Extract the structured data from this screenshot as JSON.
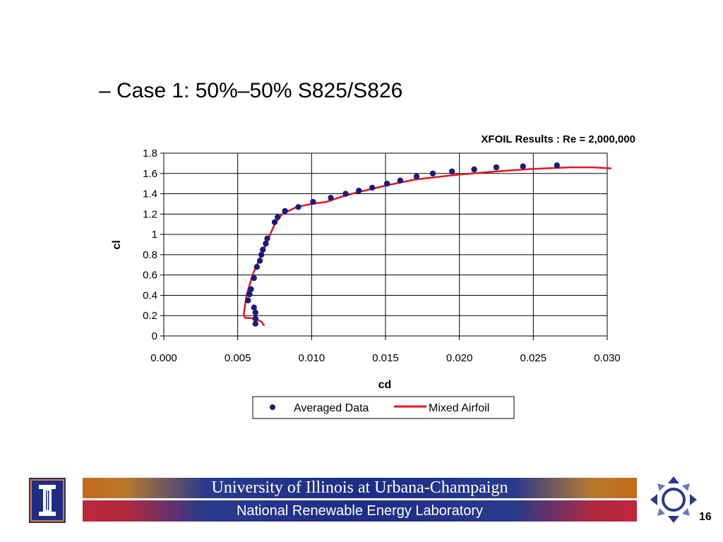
{
  "slide": {
    "bullet_text": "– Case 1: 50%–50% S825/S826",
    "page_number": "16"
  },
  "footer": {
    "line1": "University of Illinois at Urbana-Champaign",
    "line2": "National Renewable Energy Laboratory"
  },
  "chart_data": {
    "type": "scatter",
    "title": "XFOIL Results : Re = 2,000,000",
    "xlabel": "cd",
    "ylabel": "cl",
    "xlim": [
      0.0,
      0.03
    ],
    "ylim": [
      0,
      1.8
    ],
    "x_ticks": [
      "0.000",
      "0.005",
      "0.010",
      "0.015",
      "0.020",
      "0.025",
      "0.030"
    ],
    "y_ticks": [
      "0",
      "0.2",
      "0.4",
      "0.6",
      "0.8",
      "1",
      "1.2",
      "1.4",
      "1.6",
      "1.8"
    ],
    "grid": "horizontal and vertical major gridlines",
    "legend_position": "bottom",
    "series": [
      {
        "name": "Averaged Data",
        "style": "markers",
        "color": "#1a1a80",
        "points": [
          [
            0.0062,
            0.12
          ],
          [
            0.0062,
            0.17
          ],
          [
            0.0062,
            0.23
          ],
          [
            0.0061,
            0.28
          ],
          [
            0.0057,
            0.35
          ],
          [
            0.0058,
            0.41
          ],
          [
            0.0059,
            0.46
          ],
          [
            0.0061,
            0.57
          ],
          [
            0.0063,
            0.68
          ],
          [
            0.0065,
            0.74
          ],
          [
            0.0066,
            0.8
          ],
          [
            0.0067,
            0.85
          ],
          [
            0.0069,
            0.91
          ],
          [
            0.007,
            0.96
          ],
          [
            0.0075,
            1.12
          ],
          [
            0.0077,
            1.17
          ],
          [
            0.0082,
            1.23
          ],
          [
            0.0091,
            1.27
          ],
          [
            0.0101,
            1.32
          ],
          [
            0.0113,
            1.36
          ],
          [
            0.0123,
            1.4
          ],
          [
            0.0132,
            1.43
          ],
          [
            0.0141,
            1.46
          ],
          [
            0.0151,
            1.5
          ],
          [
            0.016,
            1.53
          ],
          [
            0.0171,
            1.57
          ],
          [
            0.0182,
            1.6
          ],
          [
            0.0195,
            1.62
          ],
          [
            0.021,
            1.64
          ],
          [
            0.0225,
            1.66
          ],
          [
            0.0243,
            1.67
          ],
          [
            0.0266,
            1.68
          ]
        ]
      },
      {
        "name": "Mixed Airfoil",
        "style": "line",
        "color": "#e8141c",
        "points": [
          [
            0.0068,
            0.1
          ],
          [
            0.0066,
            0.14
          ],
          [
            0.0062,
            0.17
          ],
          [
            0.0055,
            0.18
          ],
          [
            0.0054,
            0.2
          ],
          [
            0.0055,
            0.3
          ],
          [
            0.0056,
            0.4
          ],
          [
            0.0058,
            0.5
          ],
          [
            0.006,
            0.6
          ],
          [
            0.0063,
            0.7
          ],
          [
            0.0066,
            0.8
          ],
          [
            0.0069,
            0.9
          ],
          [
            0.0072,
            1.0
          ],
          [
            0.0075,
            1.1
          ],
          [
            0.008,
            1.2
          ],
          [
            0.009,
            1.27
          ],
          [
            0.01,
            1.3
          ],
          [
            0.011,
            1.32
          ],
          [
            0.012,
            1.37
          ],
          [
            0.013,
            1.41
          ],
          [
            0.015,
            1.48
          ],
          [
            0.017,
            1.54
          ],
          [
            0.02,
            1.59
          ],
          [
            0.0225,
            1.62
          ],
          [
            0.025,
            1.645
          ],
          [
            0.0275,
            1.66
          ],
          [
            0.029,
            1.66
          ],
          [
            0.0305,
            1.65
          ]
        ]
      }
    ]
  }
}
